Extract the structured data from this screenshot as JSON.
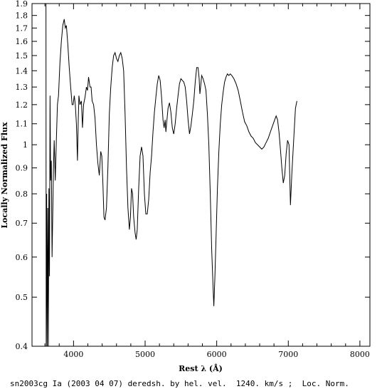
{
  "chart_data": {
    "type": "line",
    "title": "",
    "xlabel": "Rest λ (Å)",
    "ylabel": "Locally Normalized Flux",
    "caption": "sn2003cg Ia (2003 04 07) deredsh. by hel. vel.  1240. km/s ;  Loc. Norm.",
    "xlim": [
      3420,
      8140
    ],
    "ylim": [
      0.4,
      1.9
    ],
    "yscale": "log",
    "x_ticks": [
      4000,
      5000,
      6000,
      7000,
      8000
    ],
    "x_tick_labels": [
      "4000",
      "5000",
      "6000",
      "7000",
      "8000"
    ],
    "y_ticks": [
      0.4,
      0.5,
      0.6,
      0.7,
      0.8,
      0.9,
      1.0,
      1.1,
      1.2,
      1.3,
      1.4,
      1.5,
      1.6,
      1.7,
      1.8,
      1.9
    ],
    "y_tick_labels": [
      "0.4",
      "0.5",
      "0.6",
      "0.7",
      "0.8",
      "0.9",
      "1",
      "1.1",
      "1.2",
      "1.3",
      "1.4",
      "1.5",
      "1.6",
      "1.7",
      "1.8",
      "1.9"
    ],
    "grid": false,
    "series": [
      {
        "color": "#000000",
        "points": [
          [
            3615,
            1.9
          ],
          [
            3618,
            0.4
          ],
          [
            3625,
            0.8
          ],
          [
            3632,
            0.4
          ],
          [
            3640,
            0.75
          ],
          [
            3648,
            0.4
          ],
          [
            3656,
            0.82
          ],
          [
            3664,
            0.55
          ],
          [
            3672,
            1.25
          ],
          [
            3680,
            0.85
          ],
          [
            3690,
            0.93
          ],
          [
            3700,
            0.6
          ],
          [
            3720,
            0.9
          ],
          [
            3730,
            1.02
          ],
          [
            3745,
            0.85
          ],
          [
            3760,
            1.02
          ],
          [
            3775,
            1.2
          ],
          [
            3790,
            1.25
          ],
          [
            3810,
            1.45
          ],
          [
            3830,
            1.6
          ],
          [
            3850,
            1.72
          ],
          [
            3870,
            1.77
          ],
          [
            3885,
            1.7
          ],
          [
            3900,
            1.72
          ],
          [
            3920,
            1.58
          ],
          [
            3940,
            1.42
          ],
          [
            3960,
            1.3
          ],
          [
            3980,
            1.2
          ],
          [
            3995,
            1.2
          ],
          [
            4010,
            1.25
          ],
          [
            4025,
            1.2
          ],
          [
            4040,
            1.1
          ],
          [
            4055,
            0.93
          ],
          [
            4065,
            1.1
          ],
          [
            4075,
            1.25
          ],
          [
            4090,
            1.2
          ],
          [
            4110,
            1.22
          ],
          [
            4125,
            1.08
          ],
          [
            4140,
            1.2
          ],
          [
            4160,
            1.24
          ],
          [
            4180,
            1.3
          ],
          [
            4195,
            1.28
          ],
          [
            4210,
            1.36
          ],
          [
            4230,
            1.3
          ],
          [
            4245,
            1.3
          ],
          [
            4260,
            1.22
          ],
          [
            4280,
            1.2
          ],
          [
            4300,
            1.13
          ],
          [
            4320,
            1.0
          ],
          [
            4340,
            0.92
          ],
          [
            4360,
            0.87
          ],
          [
            4380,
            0.97
          ],
          [
            4395,
            0.95
          ],
          [
            4410,
            0.84
          ],
          [
            4425,
            0.72
          ],
          [
            4440,
            0.71
          ],
          [
            4460,
            0.75
          ],
          [
            4480,
            0.9
          ],
          [
            4500,
            1.15
          ],
          [
            4520,
            1.3
          ],
          [
            4540,
            1.42
          ],
          [
            4560,
            1.5
          ],
          [
            4580,
            1.52
          ],
          [
            4600,
            1.48
          ],
          [
            4620,
            1.46
          ],
          [
            4640,
            1.5
          ],
          [
            4660,
            1.52
          ],
          [
            4680,
            1.48
          ],
          [
            4700,
            1.4
          ],
          [
            4720,
            1.15
          ],
          [
            4740,
            0.9
          ],
          [
            4760,
            0.75
          ],
          [
            4780,
            0.68
          ],
          [
            4795,
            0.72
          ],
          [
            4810,
            0.82
          ],
          [
            4825,
            0.8
          ],
          [
            4840,
            0.72
          ],
          [
            4860,
            0.67
          ],
          [
            4875,
            0.65
          ],
          [
            4890,
            0.68
          ],
          [
            4910,
            0.82
          ],
          [
            4930,
            0.95
          ],
          [
            4950,
            0.99
          ],
          [
            4970,
            0.95
          ],
          [
            4990,
            0.8
          ],
          [
            5010,
            0.73
          ],
          [
            5030,
            0.73
          ],
          [
            5050,
            0.78
          ],
          [
            5070,
            0.88
          ],
          [
            5090,
            0.95
          ],
          [
            5110,
            1.06
          ],
          [
            5130,
            1.16
          ],
          [
            5150,
            1.24
          ],
          [
            5170,
            1.32
          ],
          [
            5190,
            1.37
          ],
          [
            5210,
            1.34
          ],
          [
            5230,
            1.24
          ],
          [
            5250,
            1.12
          ],
          [
            5265,
            1.08
          ],
          [
            5280,
            1.12
          ],
          [
            5290,
            1.06
          ],
          [
            5300,
            1.1
          ],
          [
            5320,
            1.18
          ],
          [
            5340,
            1.21
          ],
          [
            5360,
            1.16
          ],
          [
            5380,
            1.08
          ],
          [
            5400,
            1.05
          ],
          [
            5420,
            1.1
          ],
          [
            5440,
            1.18
          ],
          [
            5460,
            1.25
          ],
          [
            5480,
            1.32
          ],
          [
            5500,
            1.35
          ],
          [
            5520,
            1.34
          ],
          [
            5540,
            1.33
          ],
          [
            5560,
            1.3
          ],
          [
            5580,
            1.22
          ],
          [
            5600,
            1.12
          ],
          [
            5620,
            1.05
          ],
          [
            5640,
            1.09
          ],
          [
            5660,
            1.15
          ],
          [
            5680,
            1.22
          ],
          [
            5700,
            1.33
          ],
          [
            5720,
            1.42
          ],
          [
            5740,
            1.42
          ],
          [
            5755,
            1.35
          ],
          [
            5765,
            1.26
          ],
          [
            5775,
            1.3
          ],
          [
            5790,
            1.37
          ],
          [
            5810,
            1.35
          ],
          [
            5830,
            1.32
          ],
          [
            5850,
            1.28
          ],
          [
            5870,
            1.15
          ],
          [
            5890,
            1.0
          ],
          [
            5910,
            0.8
          ],
          [
            5930,
            0.62
          ],
          [
            5950,
            0.52
          ],
          [
            5960,
            0.48
          ],
          [
            5975,
            0.55
          ],
          [
            5990,
            0.65
          ],
          [
            6010,
            0.82
          ],
          [
            6030,
            0.97
          ],
          [
            6050,
            1.1
          ],
          [
            6070,
            1.2
          ],
          [
            6090,
            1.27
          ],
          [
            6110,
            1.33
          ],
          [
            6130,
            1.36
          ],
          [
            6150,
            1.38
          ],
          [
            6170,
            1.37
          ],
          [
            6190,
            1.38
          ],
          [
            6210,
            1.37
          ],
          [
            6240,
            1.35
          ],
          [
            6270,
            1.32
          ],
          [
            6300,
            1.28
          ],
          [
            6330,
            1.22
          ],
          [
            6360,
            1.16
          ],
          [
            6390,
            1.11
          ],
          [
            6420,
            1.09
          ],
          [
            6450,
            1.06
          ],
          [
            6480,
            1.04
          ],
          [
            6510,
            1.03
          ],
          [
            6540,
            1.01
          ],
          [
            6570,
            1.0
          ],
          [
            6600,
            0.99
          ],
          [
            6630,
            0.98
          ],
          [
            6660,
            0.99
          ],
          [
            6690,
            1.01
          ],
          [
            6720,
            1.03
          ],
          [
            6750,
            1.06
          ],
          [
            6780,
            1.09
          ],
          [
            6810,
            1.12
          ],
          [
            6830,
            1.14
          ],
          [
            6850,
            1.12
          ],
          [
            6870,
            1.06
          ],
          [
            6890,
            0.98
          ],
          [
            6910,
            0.9
          ],
          [
            6930,
            0.84
          ],
          [
            6950,
            0.87
          ],
          [
            6970,
            0.96
          ],
          [
            6990,
            1.02
          ],
          [
            7010,
            1.0
          ],
          [
            7030,
            0.76
          ],
          [
            7050,
            0.88
          ],
          [
            7075,
            1.02
          ],
          [
            7100,
            1.18
          ],
          [
            7120,
            1.22
          ]
        ]
      }
    ]
  }
}
